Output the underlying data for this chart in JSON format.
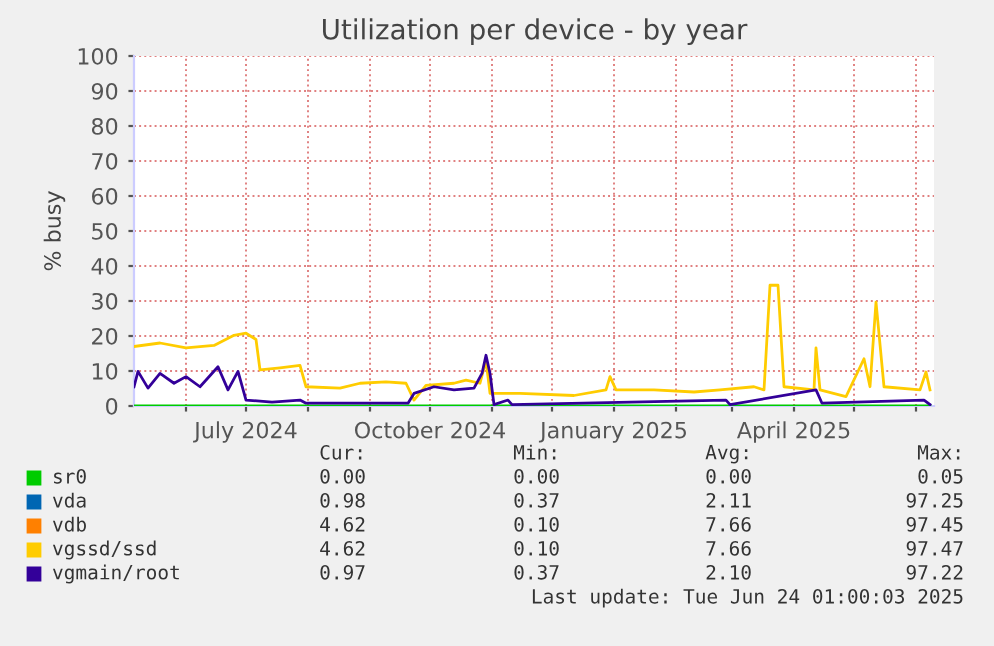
{
  "chart_data": {
    "type": "line",
    "title": "Utilization per device - by year",
    "ylabel": "% busy",
    "xlim": [
      "2024-05-06",
      "2025-06-10"
    ],
    "ylim": [
      0,
      100
    ],
    "yticks": [
      0,
      10,
      20,
      30,
      40,
      50,
      60,
      70,
      80,
      90,
      100
    ],
    "xticks": [
      {
        "value": "2024-06-01",
        "label": null
      },
      {
        "value": "2024-07-01",
        "label": "July 2024"
      },
      {
        "value": "2024-08-01",
        "label": null
      },
      {
        "value": "2024-09-01",
        "label": null
      },
      {
        "value": "2024-10-01",
        "label": "October 2024"
      },
      {
        "value": "2024-11-01",
        "label": null
      },
      {
        "value": "2024-12-01",
        "label": null
      },
      {
        "value": "2025-01-01",
        "label": "January 2025"
      },
      {
        "value": "2025-02-01",
        "label": null
      },
      {
        "value": "2025-03-01",
        "label": null
      },
      {
        "value": "2025-04-01",
        "label": "April 2025"
      },
      {
        "value": "2025-05-01",
        "label": null
      },
      {
        "value": "2025-06-01",
        "label": null
      }
    ],
    "grid": true,
    "legend": "bottom",
    "series": [
      {
        "name": "sr0",
        "color": "#00cc00",
        "x": [
          "2024-05-06",
          "2025-06-08"
        ],
        "values": [
          0,
          0
        ]
      },
      {
        "name": "vda",
        "color": "#0066b3"
      },
      {
        "name": "vdb",
        "color": "#ff8000"
      },
      {
        "name": "vgssd/ssd",
        "color": "#ffcc00",
        "x": [
          "2024-05-06",
          "2024-05-19",
          "2024-06-01",
          "2024-06-15",
          "2024-06-25",
          "2024-07-01",
          "2024-07-06",
          "2024-07-08",
          "2024-07-18",
          "2024-07-28",
          "2024-07-31",
          "2024-08-17",
          "2024-08-27",
          "2024-09-09",
          "2024-09-19",
          "2024-09-23",
          "2024-09-29",
          "2024-10-13",
          "2024-10-19",
          "2024-10-26",
          "2024-10-29",
          "2024-10-31",
          "2024-11-15",
          "2024-12-12",
          "2024-12-28",
          "2024-12-30",
          "2025-01-02",
          "2025-01-21",
          "2025-02-10",
          "2025-02-23",
          "2025-03-12",
          "2025-03-17",
          "2025-03-20",
          "2025-03-24",
          "2025-03-27",
          "2025-04-11",
          "2025-04-12",
          "2025-04-14",
          "2025-04-27",
          "2025-05-06",
          "2025-05-09",
          "2025-05-12",
          "2025-05-16",
          "2025-06-03",
          "2025-06-06",
          "2025-06-08"
        ],
        "values": [
          17,
          18,
          16.6,
          17.3,
          20.2,
          20.8,
          19,
          10.3,
          10.9,
          11.6,
          5.5,
          5.1,
          6.5,
          6.9,
          6.5,
          1.7,
          5.9,
          6.5,
          7.4,
          6.5,
          13,
          3.6,
          3.6,
          3,
          4.6,
          8.4,
          4.6,
          4.6,
          4,
          4.6,
          5.5,
          4.6,
          34.5,
          34.5,
          5.5,
          4.6,
          16.6,
          4.6,
          2.7,
          13.5,
          5.5,
          29.7,
          5.5,
          4.6,
          9.7,
          4.6
        ]
      },
      {
        "name": "vgmain/root",
        "color": "#330099",
        "x": [
          "2024-05-06",
          "2024-05-08",
          "2024-05-13",
          "2024-05-19",
          "2024-05-26",
          "2024-06-01",
          "2024-06-08",
          "2024-06-17",
          "2024-06-22",
          "2024-06-27",
          "2024-07-01",
          "2024-07-14",
          "2024-07-28",
          "2024-07-31",
          "2024-09-20",
          "2024-09-23",
          "2024-10-03",
          "2024-10-13",
          "2024-10-23",
          "2024-10-27",
          "2024-10-29",
          "2024-10-31",
          "2024-11-02",
          "2024-11-09",
          "2024-11-11",
          "2025-02-26",
          "2025-02-28",
          "2025-04-12",
          "2025-04-15",
          "2025-06-05",
          "2025-06-08"
        ],
        "values": [
          5.5,
          9.9,
          5.1,
          9.3,
          6.5,
          8.4,
          5.5,
          11.2,
          4.6,
          9.9,
          1.7,
          1.1,
          1.7,
          0.8,
          0.8,
          3.6,
          5.5,
          4.6,
          5.1,
          9.3,
          14.5,
          9.3,
          0.4,
          1.7,
          0.4,
          1.7,
          0.4,
          4.6,
          0.8,
          1.7,
          0.4
        ]
      }
    ],
    "annotations": [
      "Cur:",
      "Min:",
      "Avg:",
      "Max:",
      "0.00",
      "0.00",
      "0.00",
      "0.05",
      "0.98",
      "0.37",
      "2.11",
      "97.25",
      "4.62",
      "0.10",
      "7.66",
      "97.45",
      "4.62",
      "0.10",
      "7.66",
      "97.47",
      "0.97",
      "0.37",
      "2.10",
      "97.22",
      "Last update: Tue Jun 24 01:00:03 2025"
    ]
  }
}
